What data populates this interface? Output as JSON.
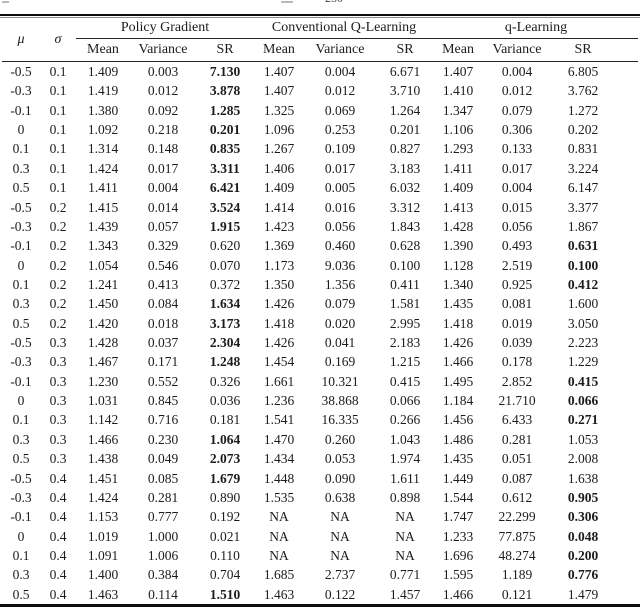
{
  "page": {
    "clipped_top_text": "250"
  },
  "table": {
    "header": {
      "mu": "μ",
      "sigma": "σ",
      "groups": [
        "Policy Gradient",
        "Conventional Q-Learning",
        "q-Learning"
      ],
      "sub_headers": [
        "Mean",
        "Variance",
        "SR"
      ]
    },
    "rows": [
      {
        "mu": "-0.5",
        "sigma": "0.1",
        "pg": [
          "1.409",
          "0.003",
          "7.130"
        ],
        "cq": [
          "1.407",
          "0.004",
          "6.671"
        ],
        "ql": [
          "1.407",
          "0.004",
          "6.805"
        ],
        "bold": "pg"
      },
      {
        "mu": "-0.3",
        "sigma": "0.1",
        "pg": [
          "1.419",
          "0.012",
          "3.878"
        ],
        "cq": [
          "1.407",
          "0.012",
          "3.710"
        ],
        "ql": [
          "1.410",
          "0.012",
          "3.762"
        ],
        "bold": "pg"
      },
      {
        "mu": "-0.1",
        "sigma": "0.1",
        "pg": [
          "1.380",
          "0.092",
          "1.285"
        ],
        "cq": [
          "1.325",
          "0.069",
          "1.264"
        ],
        "ql": [
          "1.347",
          "0.079",
          "1.272"
        ],
        "bold": "pg"
      },
      {
        "mu": "0",
        "sigma": "0.1",
        "pg": [
          "1.092",
          "0.218",
          "0.201"
        ],
        "cq": [
          "1.096",
          "0.253",
          "0.201"
        ],
        "ql": [
          "1.106",
          "0.306",
          "0.202"
        ],
        "bold": "pg"
      },
      {
        "mu": "0.1",
        "sigma": "0.1",
        "pg": [
          "1.314",
          "0.148",
          "0.835"
        ],
        "cq": [
          "1.267",
          "0.109",
          "0.827"
        ],
        "ql": [
          "1.293",
          "0.133",
          "0.831"
        ],
        "bold": "pg"
      },
      {
        "mu": "0.3",
        "sigma": "0.1",
        "pg": [
          "1.424",
          "0.017",
          "3.311"
        ],
        "cq": [
          "1.406",
          "0.017",
          "3.183"
        ],
        "ql": [
          "1.411",
          "0.017",
          "3.224"
        ],
        "bold": "pg"
      },
      {
        "mu": "0.5",
        "sigma": "0.1",
        "pg": [
          "1.411",
          "0.004",
          "6.421"
        ],
        "cq": [
          "1.409",
          "0.005",
          "6.032"
        ],
        "ql": [
          "1.409",
          "0.004",
          "6.147"
        ],
        "bold": "pg"
      },
      {
        "mu": "-0.5",
        "sigma": "0.2",
        "pg": [
          "1.415",
          "0.014",
          "3.524"
        ],
        "cq": [
          "1.414",
          "0.016",
          "3.312"
        ],
        "ql": [
          "1.413",
          "0.015",
          "3.377"
        ],
        "bold": "pg"
      },
      {
        "mu": "-0.3",
        "sigma": "0.2",
        "pg": [
          "1.439",
          "0.057",
          "1.915"
        ],
        "cq": [
          "1.423",
          "0.056",
          "1.843"
        ],
        "ql": [
          "1.428",
          "0.056",
          "1.867"
        ],
        "bold": "pg"
      },
      {
        "mu": "-0.1",
        "sigma": "0.2",
        "pg": [
          "1.343",
          "0.329",
          "0.620"
        ],
        "cq": [
          "1.369",
          "0.460",
          "0.628"
        ],
        "ql": [
          "1.390",
          "0.493",
          "0.631"
        ],
        "bold": "ql"
      },
      {
        "mu": "0",
        "sigma": "0.2",
        "pg": [
          "1.054",
          "0.546",
          "0.070"
        ],
        "cq": [
          "1.173",
          "9.036",
          "0.100"
        ],
        "ql": [
          "1.128",
          "2.519",
          "0.100"
        ],
        "bold": "ql"
      },
      {
        "mu": "0.1",
        "sigma": "0.2",
        "pg": [
          "1.241",
          "0.413",
          "0.372"
        ],
        "cq": [
          "1.350",
          "1.356",
          "0.411"
        ],
        "ql": [
          "1.340",
          "0.925",
          "0.412"
        ],
        "bold": "ql"
      },
      {
        "mu": "0.3",
        "sigma": "0.2",
        "pg": [
          "1.450",
          "0.084",
          "1.634"
        ],
        "cq": [
          "1.426",
          "0.079",
          "1.581"
        ],
        "ql": [
          "1.435",
          "0.081",
          "1.600"
        ],
        "bold": "pg"
      },
      {
        "mu": "0.5",
        "sigma": "0.2",
        "pg": [
          "1.420",
          "0.018",
          "3.173"
        ],
        "cq": [
          "1.418",
          "0.020",
          "2.995"
        ],
        "ql": [
          "1.418",
          "0.019",
          "3.050"
        ],
        "bold": "pg"
      },
      {
        "mu": "-0.5",
        "sigma": "0.3",
        "pg": [
          "1.428",
          "0.037",
          "2.304"
        ],
        "cq": [
          "1.426",
          "0.041",
          "2.183"
        ],
        "ql": [
          "1.426",
          "0.039",
          "2.223"
        ],
        "bold": "pg"
      },
      {
        "mu": "-0.3",
        "sigma": "0.3",
        "pg": [
          "1.467",
          "0.171",
          "1.248"
        ],
        "cq": [
          "1.454",
          "0.169",
          "1.215"
        ],
        "ql": [
          "1.466",
          "0.178",
          "1.229"
        ],
        "bold": "pg"
      },
      {
        "mu": "-0.1",
        "sigma": "0.3",
        "pg": [
          "1.230",
          "0.552",
          "0.326"
        ],
        "cq": [
          "1.661",
          "10.321",
          "0.415"
        ],
        "ql": [
          "1.495",
          "2.852",
          "0.415"
        ],
        "bold": "ql"
      },
      {
        "mu": "0",
        "sigma": "0.3",
        "pg": [
          "1.031",
          "0.845",
          "0.036"
        ],
        "cq": [
          "1.236",
          "38.868",
          "0.066"
        ],
        "ql": [
          "1.184",
          "21.710",
          "0.066"
        ],
        "bold": "ql"
      },
      {
        "mu": "0.1",
        "sigma": "0.3",
        "pg": [
          "1.142",
          "0.716",
          "0.181"
        ],
        "cq": [
          "1.541",
          "16.335",
          "0.266"
        ],
        "ql": [
          "1.456",
          "6.433",
          "0.271"
        ],
        "bold": "ql"
      },
      {
        "mu": "0.3",
        "sigma": "0.3",
        "pg": [
          "1.466",
          "0.230",
          "1.064"
        ],
        "cq": [
          "1.470",
          "0.260",
          "1.043"
        ],
        "ql": [
          "1.486",
          "0.281",
          "1.053"
        ],
        "bold": "pg"
      },
      {
        "mu": "0.5",
        "sigma": "0.3",
        "pg": [
          "1.438",
          "0.049",
          "2.073"
        ],
        "cq": [
          "1.434",
          "0.053",
          "1.974"
        ],
        "ql": [
          "1.435",
          "0.051",
          "2.008"
        ],
        "bold": "pg"
      },
      {
        "mu": "-0.5",
        "sigma": "0.4",
        "pg": [
          "1.451",
          "0.085",
          "1.679"
        ],
        "cq": [
          "1.448",
          "0.090",
          "1.611"
        ],
        "ql": [
          "1.449",
          "0.087",
          "1.638"
        ],
        "bold": "pg"
      },
      {
        "mu": "-0.3",
        "sigma": "0.4",
        "pg": [
          "1.424",
          "0.281",
          "0.890"
        ],
        "cq": [
          "1.535",
          "0.638",
          "0.898"
        ],
        "ql": [
          "1.544",
          "0.612",
          "0.905"
        ],
        "bold": "ql"
      },
      {
        "mu": "-0.1",
        "sigma": "0.4",
        "pg": [
          "1.153",
          "0.777",
          "0.192"
        ],
        "cq": [
          "NA",
          "NA",
          "NA"
        ],
        "ql": [
          "1.747",
          "22.299",
          "0.306"
        ],
        "bold": "ql"
      },
      {
        "mu": "0",
        "sigma": "0.4",
        "pg": [
          "1.019",
          "1.000",
          "0.021"
        ],
        "cq": [
          "NA",
          "NA",
          "NA"
        ],
        "ql": [
          "1.233",
          "77.875",
          "0.048"
        ],
        "bold": "ql"
      },
      {
        "mu": "0.1",
        "sigma": "0.4",
        "pg": [
          "1.091",
          "1.006",
          "0.110"
        ],
        "cq": [
          "NA",
          "NA",
          "NA"
        ],
        "ql": [
          "1.696",
          "48.274",
          "0.200"
        ],
        "bold": "ql"
      },
      {
        "mu": "0.3",
        "sigma": "0.4",
        "pg": [
          "1.400",
          "0.384",
          "0.704"
        ],
        "cq": [
          "1.685",
          "2.737",
          "0.771"
        ],
        "ql": [
          "1.595",
          "1.189",
          "0.776"
        ],
        "bold": "ql"
      },
      {
        "mu": "0.5",
        "sigma": "0.4",
        "pg": [
          "1.463",
          "0.114",
          "1.510"
        ],
        "cq": [
          "1.463",
          "0.122",
          "1.457"
        ],
        "ql": [
          "1.466",
          "0.121",
          "1.479"
        ],
        "bold": "pg"
      }
    ]
  }
}
